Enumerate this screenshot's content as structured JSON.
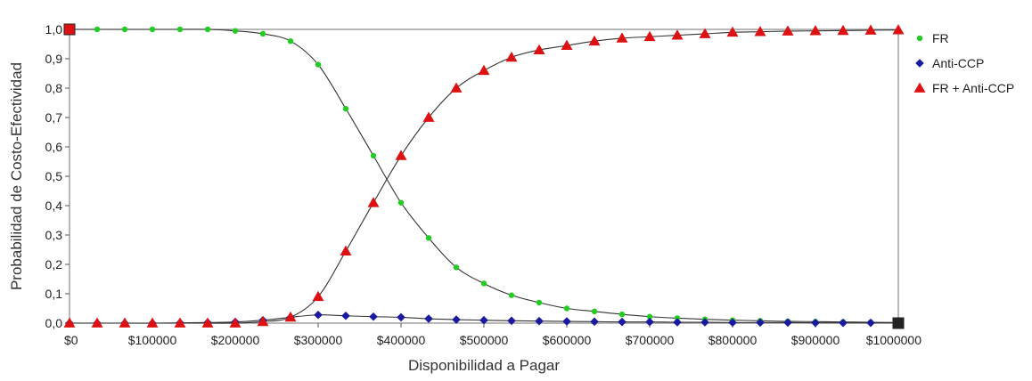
{
  "chart_data": {
    "type": "line",
    "xlabel": "Disponibilidad a Pagar",
    "ylabel": "Probabilidad de Costo-Efectividad",
    "xlim": [
      0,
      1000000
    ],
    "ylim": [
      0,
      1
    ],
    "x_ticks": [
      0,
      100000,
      200000,
      300000,
      400000,
      500000,
      600000,
      700000,
      800000,
      900000,
      1000000
    ],
    "x_tick_labels": [
      "$0",
      "$100000",
      "$200000",
      "$300000",
      "$400000",
      "$500000",
      "$600000",
      "$700000",
      "$800000",
      "$900000",
      "$1000000"
    ],
    "y_ticks": [
      0,
      0.1,
      0.2,
      0.3,
      0.4,
      0.5,
      0.6,
      0.7,
      0.8,
      0.9,
      1.0
    ],
    "y_tick_labels": [
      "0,0",
      "0,1",
      "0,2",
      "0,3",
      "0,4",
      "0,5",
      "0,6",
      "0,7",
      "0,8",
      "0,9",
      "1,0"
    ],
    "grid": false,
    "legend_position": "right",
    "x": [
      0,
      33333,
      66667,
      100000,
      133333,
      166667,
      200000,
      233333,
      266667,
      300000,
      333333,
      366667,
      400000,
      433333,
      466667,
      500000,
      533333,
      566667,
      600000,
      633333,
      666667,
      700000,
      733333,
      766667,
      800000,
      833333,
      866667,
      900000,
      933333,
      966667,
      1000000
    ],
    "series": [
      {
        "name": "FR",
        "color": "#22cc22",
        "marker": "circle",
        "values": [
          1.0,
          1.0,
          1.0,
          1.0,
          1.0,
          1.0,
          0.995,
          0.985,
          0.96,
          0.88,
          0.73,
          0.57,
          0.41,
          0.29,
          0.19,
          0.135,
          0.095,
          0.07,
          0.05,
          0.04,
          0.03,
          0.022,
          0.017,
          0.013,
          0.01,
          0.008,
          0.006,
          0.005,
          0.004,
          0.003,
          0.002
        ]
      },
      {
        "name": "Anti-CCP",
        "color": "#1a1aa0",
        "marker": "diamond",
        "values": [
          0.0,
          0.0,
          0.0,
          0.0,
          0.001,
          0.002,
          0.004,
          0.01,
          0.02,
          0.028,
          0.025,
          0.022,
          0.02,
          0.015,
          0.012,
          0.01,
          0.008,
          0.007,
          0.006,
          0.005,
          0.004,
          0.004,
          0.003,
          0.003,
          0.002,
          0.002,
          0.002,
          0.001,
          0.001,
          0.001,
          0.001
        ]
      },
      {
        "name": "FR + Anti-CCP",
        "color": "#dd1111",
        "marker": "triangle",
        "values": [
          0.0,
          0.0,
          0.0,
          0.0,
          0.0,
          0.0,
          0.0,
          0.005,
          0.02,
          0.09,
          0.245,
          0.41,
          0.57,
          0.7,
          0.8,
          0.86,
          0.905,
          0.93,
          0.945,
          0.96,
          0.97,
          0.975,
          0.98,
          0.985,
          0.99,
          0.992,
          0.994,
          0.995,
          0.996,
          0.997,
          0.998
        ]
      }
    ]
  }
}
